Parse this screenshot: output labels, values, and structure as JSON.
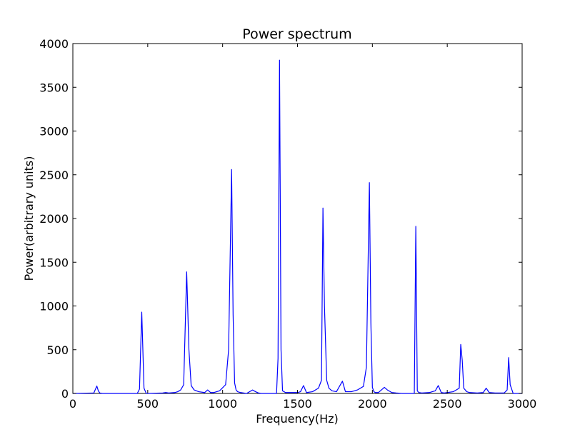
{
  "chart_data": {
    "type": "line",
    "title": "Power spectrum",
    "xlabel": "Frequency(Hz)",
    "ylabel": "Power(arbitrary units)",
    "xlim": [
      0,
      3000
    ],
    "ylim": [
      0,
      4000
    ],
    "xticks": [
      0,
      500,
      1000,
      1500,
      2000,
      2500,
      3000
    ],
    "yticks": [
      0,
      500,
      1000,
      1500,
      2000,
      2500,
      3000,
      3500,
      4000
    ],
    "grid": false,
    "series": [
      {
        "color": "#0000ff",
        "x": [
          0,
          140,
          160,
          170,
          180,
          200,
          300,
          430,
          445,
          460,
          475,
          490,
          500,
          600,
          620,
          640,
          680,
          700,
          720,
          740,
          760,
          775,
          790,
          810,
          840,
          880,
          900,
          920,
          940,
          980,
          1020,
          1040,
          1060,
          1070,
          1080,
          1090,
          1100,
          1120,
          1160,
          1200,
          1220,
          1240,
          1260,
          1300,
          1360,
          1370,
          1380,
          1390,
          1400,
          1420,
          1460,
          1500,
          1520,
          1540,
          1560,
          1600,
          1640,
          1660,
          1670,
          1680,
          1695,
          1710,
          1730,
          1760,
          1800,
          1820,
          1840,
          1860,
          1900,
          1940,
          1960,
          1980,
          1990,
          2000,
          2010,
          2020,
          2040,
          2080,
          2100,
          2130,
          2160,
          2200,
          2270,
          2280,
          2290,
          2300,
          2310,
          2330,
          2380,
          2420,
          2440,
          2460,
          2480,
          2500,
          2540,
          2560,
          2580,
          2590,
          2600,
          2610,
          2630,
          2650,
          2700,
          2740,
          2760,
          2780,
          2820,
          2860,
          2880,
          2900,
          2910,
          2920,
          2940,
          3000
        ],
        "y": [
          0,
          5,
          85,
          30,
          5,
          0,
          0,
          0,
          50,
          930,
          60,
          0,
          0,
          5,
          10,
          5,
          10,
          20,
          40,
          100,
          1390,
          500,
          90,
          40,
          20,
          10,
          40,
          10,
          10,
          30,
          100,
          500,
          2560,
          900,
          120,
          40,
          20,
          10,
          0,
          40,
          20,
          5,
          0,
          0,
          0,
          400,
          3810,
          500,
          30,
          10,
          10,
          10,
          20,
          90,
          10,
          20,
          60,
          150,
          2120,
          1000,
          150,
          60,
          30,
          20,
          140,
          20,
          20,
          20,
          40,
          80,
          300,
          2410,
          800,
          70,
          20,
          10,
          10,
          70,
          40,
          10,
          5,
          0,
          0,
          0,
          1910,
          30,
          10,
          5,
          10,
          30,
          90,
          10,
          5,
          10,
          20,
          40,
          60,
          560,
          380,
          60,
          20,
          10,
          5,
          10,
          60,
          10,
          5,
          5,
          5,
          40,
          410,
          100,
          0,
          0
        ]
      }
    ]
  }
}
